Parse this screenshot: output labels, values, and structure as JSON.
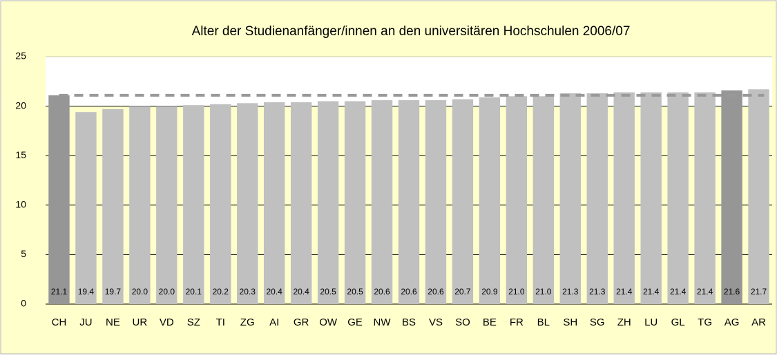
{
  "chart_data": {
    "type": "bar",
    "title": "Alter der Studienanfänger/innen an den universitären Hochschulen 2006/07",
    "categories": [
      "CH",
      "JU",
      "NE",
      "UR",
      "VD",
      "SZ",
      "TI",
      "ZG",
      "AI",
      "GR",
      "OW",
      "GE",
      "NW",
      "BS",
      "VS",
      "SO",
      "BE",
      "FR",
      "BL",
      "SH",
      "SG",
      "ZH",
      "LU",
      "GL",
      "TG",
      "AG",
      "AR"
    ],
    "values": [
      21.1,
      19.4,
      19.7,
      20.0,
      20.0,
      20.1,
      20.2,
      20.3,
      20.4,
      20.4,
      20.5,
      20.5,
      20.6,
      20.6,
      20.6,
      20.7,
      20.9,
      21.0,
      21.0,
      21.3,
      21.3,
      21.4,
      21.4,
      21.4,
      21.4,
      21.6,
      21.7
    ],
    "value_labels": [
      "21.1",
      "19.4",
      "19.7",
      "20.0",
      "20.0",
      "20.1",
      "20.2",
      "20.3",
      "20.4",
      "20.4",
      "20.5",
      "20.5",
      "20.6",
      "20.6",
      "20.6",
      "20.7",
      "20.9",
      "21.0",
      "21.0",
      "21.3",
      "21.3",
      "21.4",
      "21.4",
      "21.4",
      "21.4",
      "21.6",
      "21.7"
    ],
    "colors": [
      "#969696",
      "#c0c0c0",
      "#c0c0c0",
      "#c0c0c0",
      "#c0c0c0",
      "#c0c0c0",
      "#c0c0c0",
      "#c0c0c0",
      "#c0c0c0",
      "#c0c0c0",
      "#c0c0c0",
      "#c0c0c0",
      "#c0c0c0",
      "#c0c0c0",
      "#c0c0c0",
      "#c0c0c0",
      "#c0c0c0",
      "#c0c0c0",
      "#c0c0c0",
      "#c0c0c0",
      "#c0c0c0",
      "#c0c0c0",
      "#c0c0c0",
      "#c0c0c0",
      "#c0c0c0",
      "#969696",
      "#c0c0c0"
    ],
    "average": 21.1,
    "ylim": [
      0,
      25
    ],
    "yticks": [
      0,
      5,
      10,
      15,
      20,
      25
    ],
    "grid": true
  }
}
